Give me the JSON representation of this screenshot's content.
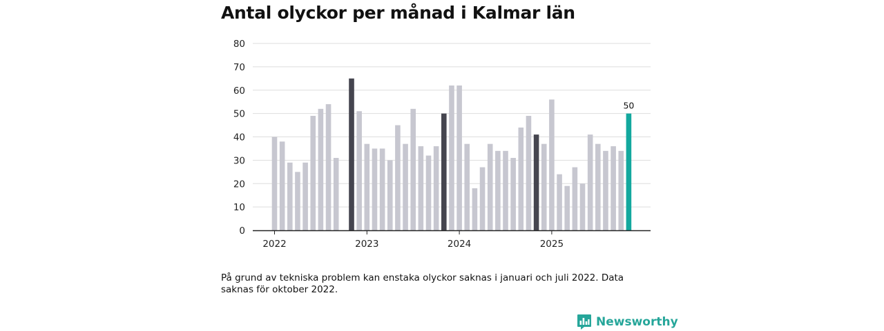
{
  "chart_data": {
    "type": "bar",
    "title": "Antal olyckor per månad i Kalmar län",
    "xlabel": "",
    "ylabel": "",
    "ylim": [
      0,
      80
    ],
    "yticks": [
      0,
      10,
      20,
      30,
      40,
      50,
      60,
      70,
      80
    ],
    "grid": true,
    "x_tick_labels": [
      "2022",
      "2023",
      "2024",
      "2025"
    ],
    "categories": [
      "2022-01",
      "2022-02",
      "2022-03",
      "2022-04",
      "2022-05",
      "2022-06",
      "2022-07",
      "2022-08",
      "2022-09",
      "2022-10",
      "2022-11",
      "2022-12",
      "2023-01",
      "2023-02",
      "2023-03",
      "2023-04",
      "2023-05",
      "2023-06",
      "2023-07",
      "2023-08",
      "2023-09",
      "2023-10",
      "2023-11",
      "2023-12",
      "2024-01",
      "2024-02",
      "2024-03",
      "2024-04",
      "2024-05",
      "2024-06",
      "2024-07",
      "2024-08",
      "2024-09",
      "2024-10",
      "2024-11",
      "2024-12",
      "2025-01",
      "2025-02",
      "2025-03",
      "2025-04",
      "2025-05",
      "2025-06",
      "2025-07",
      "2025-08",
      "2025-09",
      "2025-10",
      "2025-11"
    ],
    "values": [
      40,
      38,
      29,
      25,
      29,
      49,
      52,
      54,
      31,
      null,
      65,
      51,
      37,
      35,
      35,
      30,
      45,
      37,
      52,
      36,
      32,
      36,
      50,
      62,
      62,
      37,
      18,
      27,
      37,
      34,
      34,
      31,
      44,
      49,
      41,
      37,
      56,
      24,
      19,
      27,
      20,
      41,
      37,
      34,
      36,
      34,
      50
    ],
    "highlighted_months": [
      "2022-11",
      "2023-11",
      "2024-11"
    ],
    "latest_month": "2025-11",
    "data_labels": [
      {
        "category": "2025-11",
        "text": "50"
      }
    ],
    "colors": {
      "default": "#c7c7d0",
      "highlight": "#45454f",
      "latest": "#13a89e",
      "grid": "#dddddd",
      "axis": "#222222"
    }
  },
  "footnote": "På grund av tekniska problem kan enstaka olyckor saknas i januari och juli 2022. Data saknas för oktober 2022.",
  "brand": {
    "name": "Newsworthy",
    "icon": "bar-chart-speech-icon",
    "color": "#26a69a"
  }
}
